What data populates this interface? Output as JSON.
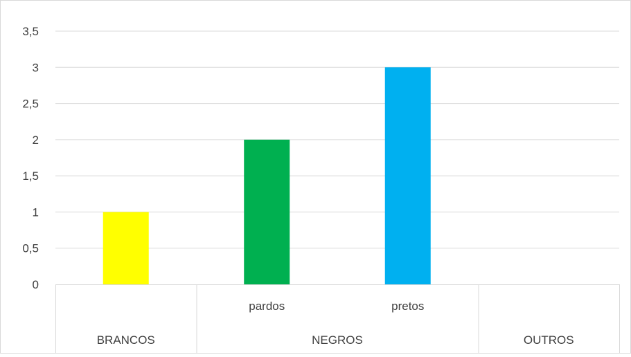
{
  "chart_data": {
    "type": "bar",
    "categories": [
      "BRANCOS",
      "pardos",
      "pretos",
      "OUTROS"
    ],
    "group_labels": [
      "BRANCOS",
      "NEGROS",
      "OUTROS"
    ],
    "sub_labels": [
      "",
      "pardos",
      "pretos",
      ""
    ],
    "values": [
      1,
      2,
      3,
      null
    ],
    "bar_colors": [
      "#FFFF00",
      "#00B050",
      "#00B0F0",
      "#000000"
    ],
    "ylim": [
      0,
      3.5
    ],
    "yticks": [
      "0",
      "0,5",
      "1",
      "1,5",
      "2",
      "2,5",
      "3",
      "3,5"
    ],
    "grid": true,
    "legend": "none",
    "title": "",
    "xlabel": "",
    "ylabel": ""
  }
}
